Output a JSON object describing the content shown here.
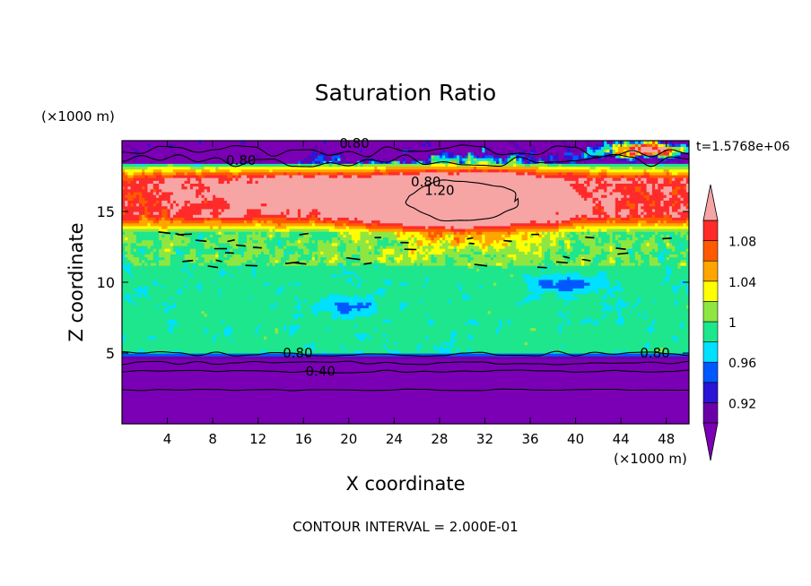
{
  "chart_data": {
    "type": "heatmap",
    "title": "Saturation Ratio",
    "xlabel": "X coordinate",
    "ylabel": "Z coordinate",
    "x_unit": "(×1000 m)",
    "y_unit": "(×1000 m)",
    "time_label": "t=1.5768e+06",
    "footer": "CONTOUR INTERVAL = 2.000E-01",
    "xlim": [
      0,
      50
    ],
    "ylim": [
      0,
      20
    ],
    "x_ticks": [
      4,
      8,
      12,
      16,
      20,
      24,
      28,
      32,
      36,
      40,
      44,
      48
    ],
    "y_ticks": [
      5,
      10,
      15
    ],
    "colorbar": {
      "labels": [
        "1.08",
        "1.04",
        "1",
        "0.96",
        "0.92"
      ],
      "levels": [
        0.9,
        0.92,
        0.94,
        0.96,
        0.98,
        1.0,
        1.02,
        1.04,
        1.06,
        1.08,
        1.1
      ],
      "colors": [
        "#6a00a8",
        "#2a14d6",
        "#0058ff",
        "#00e0ff",
        "#1ee68c",
        "#90e640",
        "#ffff00",
        "#ffa500",
        "#ff5a00",
        "#ff2a2a"
      ],
      "under_color": "#7b00b5",
      "over_color": "#f6a4a4"
    },
    "contour_labels": [
      {
        "text": "0.80",
        "x": 20.5,
        "z": 19.8
      },
      {
        "text": "0.80",
        "x": 10.5,
        "z": 18.6
      },
      {
        "text": "0.80",
        "x": 26.8,
        "z": 17.1
      },
      {
        "text": "1.20",
        "x": 28.0,
        "z": 16.5
      },
      {
        "text": "0.80",
        "x": 15.5,
        "z": 5.0
      },
      {
        "text": "0.40",
        "x": 17.5,
        "z": 3.7
      },
      {
        "text": "0.80",
        "x": 47.0,
        "z": 5.0
      }
    ]
  }
}
